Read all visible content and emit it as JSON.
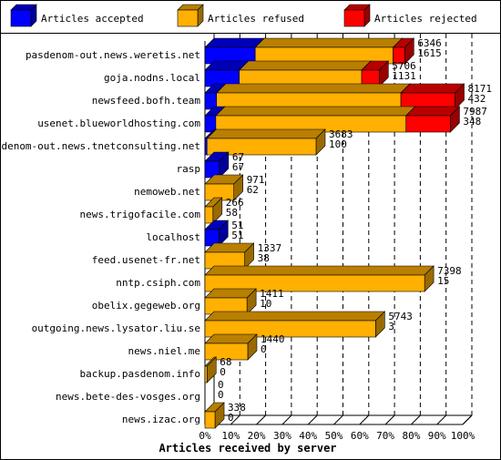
{
  "chart_data": {
    "type": "bar",
    "stacked": true,
    "orientation": "horizontal",
    "value_unit": "percent",
    "xlabel": "Articles received by server",
    "xlim": [
      0,
      100
    ],
    "x_ticks": [
      "0%",
      "10%",
      "20%",
      "30%",
      "40%",
      "50%",
      "60%",
      "70%",
      "80%",
      "90%",
      "100%"
    ],
    "legend_position": "top",
    "categories": [
      "pasdenom-out.news.weretis.net",
      "goja.nodns.local",
      "newsfeed.bofh.team",
      "usenet.blueworldhosting.com",
      "pasdenom-out.news.tnetconsulting.net",
      "rasp",
      "nemoweb.net",
      "news.trigofacile.com",
      "localhost",
      "feed.usenet-fr.net",
      "nntp.csiph.com",
      "obelix.gegeweb.org",
      "outgoing.news.lysator.liu.se",
      "news.niel.me",
      "backup.pasdenom.info",
      "news.bete-des-vosges.org",
      "news.izac.org"
    ],
    "series": [
      {
        "name": "Articles accepted",
        "color": "#0000ff",
        "values": [
          19.5,
          13.3,
          4.5,
          4.2,
          0.8,
          5.6,
          0,
          0,
          5.4,
          0,
          0,
          0,
          0,
          0,
          0,
          0,
          0
        ]
      },
      {
        "name": "Articles refused",
        "color": "#ffb000",
        "values": [
          53.5,
          47.5,
          71.5,
          73.8,
          42.3,
          0,
          11.2,
          3.1,
          0,
          15.4,
          85.2,
          16.3,
          66.2,
          16.6,
          0.8,
          0,
          3.9
        ]
      },
      {
        "name": "Articles rejected",
        "color": "#ff0000",
        "values": [
          4.5,
          6.8,
          21.0,
          17.2,
          0,
          0,
          0,
          0,
          0,
          0,
          0,
          0,
          0,
          0,
          0,
          0,
          0
        ]
      }
    ],
    "labels_total": [
      "6346",
      "5706",
      "8171",
      "7987",
      "3683",
      "67",
      "971",
      "266",
      "51",
      "1337",
      "7398",
      "1411",
      "5743",
      "1440",
      "68",
      "0",
      "338"
    ],
    "labels_accepted": [
      "1615",
      "1131",
      "432",
      "348",
      "100",
      "67",
      "62",
      "58",
      "51",
      "38",
      "15",
      "10",
      "3",
      "0",
      "0",
      "0",
      "0"
    ]
  },
  "colors": {
    "accepted": "#0000ff",
    "refused": "#ffb000",
    "rejected": "#ff0000"
  }
}
